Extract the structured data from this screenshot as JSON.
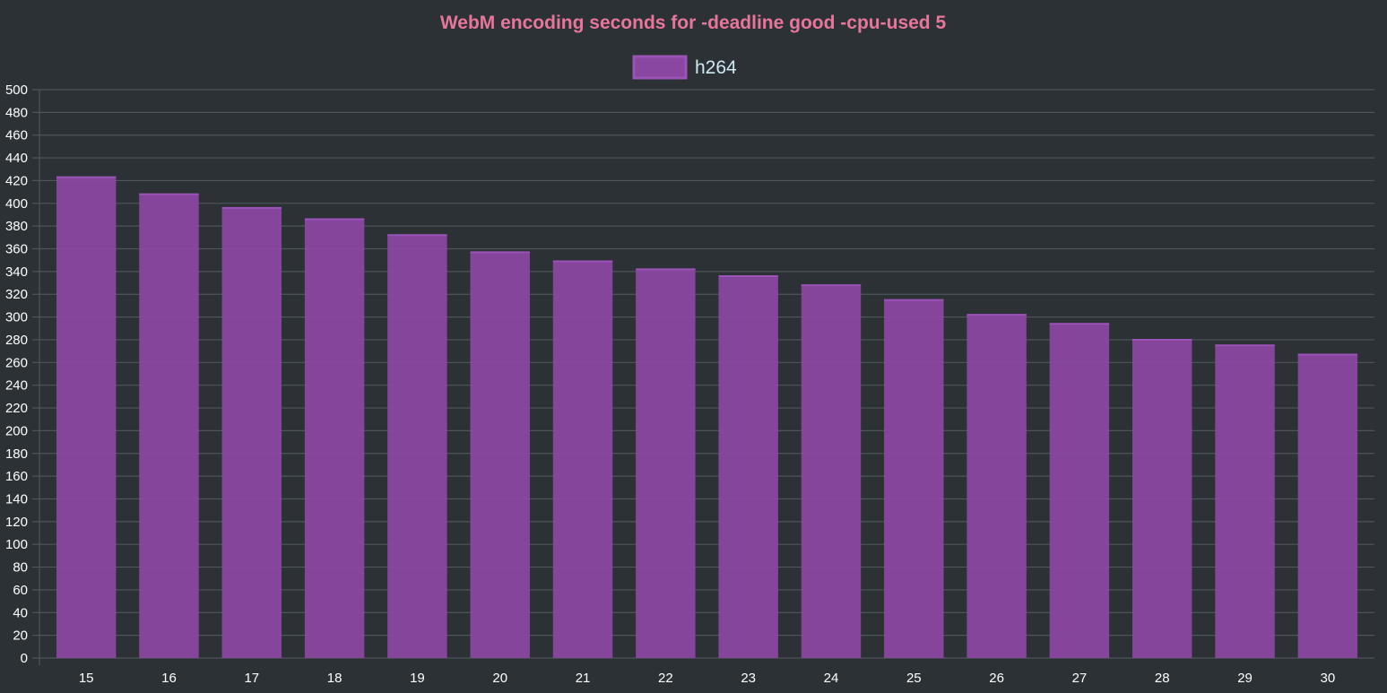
{
  "colors": {
    "background": "#2b3135",
    "title": "#e8759a",
    "legend_text": "#cfe8f2",
    "tick_text": "#ffffff",
    "grid": "#4d5659",
    "bar_fill": "#8a47a1",
    "bar_stroke": "#9b53b8"
  },
  "chart_data": {
    "type": "bar",
    "title": "WebM encoding seconds for -deadline good -cpu-used 5",
    "xlabel": "",
    "ylabel": "",
    "categories": [
      "15",
      "16",
      "17",
      "18",
      "19",
      "20",
      "21",
      "22",
      "23",
      "24",
      "25",
      "26",
      "27",
      "28",
      "29",
      "30"
    ],
    "series": [
      {
        "name": "h264",
        "values": [
          423,
          408,
          396,
          386,
          372,
          357,
          349,
          342,
          336,
          328,
          315,
          302,
          294,
          280,
          275,
          267
        ]
      }
    ],
    "ylim": [
      0,
      500
    ],
    "ytick_step": 20,
    "grid": true,
    "legend_position": "top-center"
  }
}
